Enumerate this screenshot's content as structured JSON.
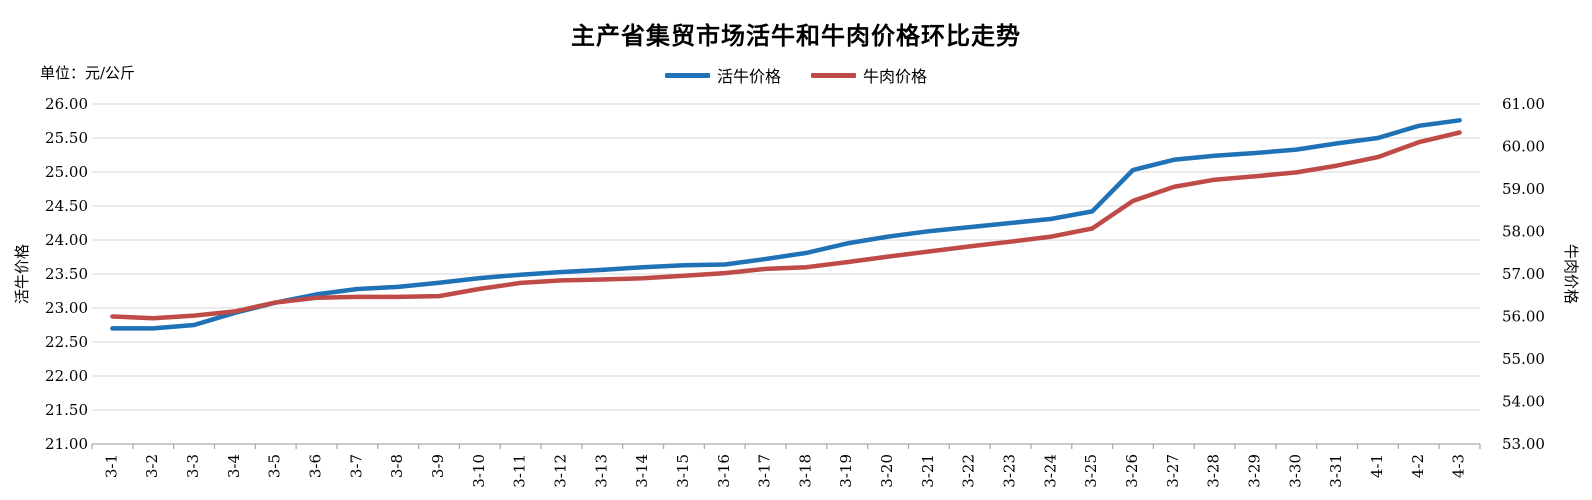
{
  "title": "主产省集贸市场活牛和牛肉价格环比走势",
  "unit_label": "单位：元/公斤",
  "legend": {
    "items": [
      {
        "label": "活牛价格",
        "color": "#1F72B5"
      },
      {
        "label": "牛肉价格",
        "color": "#BE4B48"
      }
    ]
  },
  "left_axis": {
    "title": "活牛价格",
    "ticks": [
      "26.00",
      "25.50",
      "25.00",
      "24.50",
      "24.00",
      "23.50",
      "23.00",
      "22.50",
      "22.00",
      "21.50",
      "21.00"
    ]
  },
  "right_axis": {
    "title": "牛肉价格",
    "ticks": [
      "61.00",
      "60.00",
      "59.00",
      "58.00",
      "57.00",
      "56.00",
      "55.00",
      "54.00",
      "53.00"
    ]
  },
  "chart_data": {
    "type": "line",
    "title": "主产省集贸市场活牛和牛肉价格环比走势",
    "unit": "元/公斤",
    "categories": [
      "3-1",
      "3-2",
      "3-3",
      "3-4",
      "3-5",
      "3-6",
      "3-7",
      "3-8",
      "3-9",
      "3-10",
      "3-11",
      "3-12",
      "3-13",
      "3-14",
      "3-15",
      "3-16",
      "3-17",
      "3-18",
      "3-19",
      "3-20",
      "3-21",
      "3-22",
      "3-23",
      "3-24",
      "3-25",
      "3-26",
      "3-27",
      "3-28",
      "3-29",
      "3-30",
      "3-31",
      "4-1",
      "4-2",
      "4-3"
    ],
    "series": [
      {
        "name": "活牛价格",
        "axis": "left",
        "color": "#1F72B5",
        "values": [
          22.7,
          22.7,
          22.75,
          22.93,
          23.08,
          23.2,
          23.28,
          23.31,
          23.37,
          23.44,
          23.49,
          23.53,
          23.56,
          23.6,
          23.63,
          23.64,
          23.72,
          23.81,
          23.95,
          24.05,
          24.13,
          24.19,
          24.25,
          24.31,
          24.42,
          25.03,
          25.18,
          25.24,
          25.28,
          25.33,
          25.42,
          25.5,
          25.68,
          25.76
        ]
      },
      {
        "name": "牛肉价格",
        "axis": "right",
        "color": "#BE4B48",
        "values": [
          56.0,
          55.96,
          56.02,
          56.12,
          56.33,
          56.44,
          56.46,
          56.46,
          56.48,
          56.65,
          56.79,
          56.85,
          56.87,
          56.9,
          56.96,
          57.02,
          57.12,
          57.16,
          57.28,
          57.41,
          57.53,
          57.65,
          57.76,
          57.88,
          58.07,
          58.72,
          59.05,
          59.22,
          59.3,
          59.39,
          59.55,
          59.75,
          60.1,
          60.33
        ]
      }
    ],
    "left_ylabel": "活牛价格",
    "right_ylabel": "牛肉价格",
    "left_ylim": [
      21,
      26
    ],
    "right_ylim": [
      53,
      61
    ],
    "grid": true,
    "legend_position": "top"
  },
  "colors": {
    "grid": "#D9D9D9",
    "axis": "#ABABAB",
    "text": "#000000"
  }
}
